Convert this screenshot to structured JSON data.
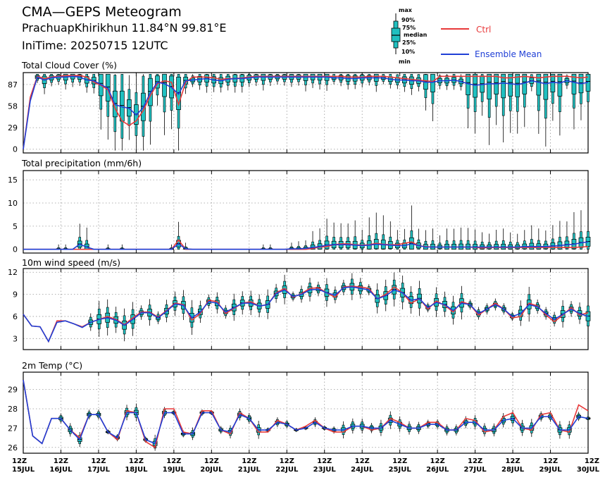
{
  "header": {
    "title": "CMA—GEPS Meteogram",
    "location": "PrachuapKhirikhun 11.84°N 99.81°E",
    "init_time": "IniTime: 20250715 12UTC"
  },
  "legend": {
    "box_labels": [
      "max",
      "90%",
      "75%",
      "median",
      "25%",
      "10%",
      "min"
    ],
    "series": [
      {
        "name": "Ctrl",
        "color": "#e8393a"
      },
      {
        "name": "Ensemble Mean",
        "color": "#1f3fd6"
      }
    ],
    "box_color": "#20c0c0"
  },
  "x_axis": {
    "hour_label": "12Z",
    "dates": [
      "15JUL",
      "16JUL",
      "17JUL",
      "18JUL",
      "19JUL",
      "20JUL",
      "21JUL",
      "22JUL",
      "23JUL",
      "24JUL",
      "25JUL",
      "26JUL",
      "27JUL",
      "28JUL",
      "29JUL",
      "30JUL"
    ]
  },
  "chart_data": [
    {
      "type": "boxplot+line",
      "title": "Total Cloud Cover (%)",
      "ylim": [
        -5,
        103
      ],
      "yticks": [
        0,
        29,
        58,
        87
      ],
      "grid": true,
      "x_step_hours": 6,
      "box_start_index": 2,
      "ctrl": [
        0,
        70,
        98,
        95,
        97,
        98,
        99,
        99,
        99,
        97,
        90,
        86,
        80,
        55,
        38,
        32,
        38,
        52,
        72,
        88,
        92,
        90,
        60,
        90,
        97,
        97,
        97,
        96,
        94,
        95,
        95,
        96,
        97,
        98,
        98,
        98,
        98,
        98,
        98,
        98,
        98,
        98,
        98,
        98,
        98,
        98,
        97,
        97,
        97,
        98,
        98,
        98,
        97,
        96,
        95,
        94,
        93,
        92,
        91,
        98,
        98,
        98,
        98,
        98,
        98,
        98,
        98,
        98,
        96,
        96,
        97,
        98,
        97,
        96,
        97,
        98,
        98,
        98,
        97,
        96,
        97
      ],
      "mean": [
        0,
        65,
        97,
        93,
        96,
        97,
        97,
        98,
        97,
        93,
        92,
        87,
        82,
        60,
        57,
        55,
        46,
        56,
        76,
        90,
        88,
        83,
        74,
        92,
        93,
        94,
        95,
        93,
        92,
        94,
        95,
        95,
        96,
        97,
        97,
        97,
        97,
        97,
        97,
        97,
        97,
        97,
        97,
        97,
        96,
        96,
        95,
        95,
        96,
        96,
        96,
        96,
        94,
        93,
        93,
        92,
        92,
        90,
        90,
        92,
        92,
        93,
        91,
        88,
        86,
        87,
        88,
        88,
        89,
        88,
        87,
        89,
        92,
        90,
        88,
        90,
        89,
        92,
        90,
        88,
        90
      ]
    },
    {
      "type": "boxplot+line",
      "title": "Total precipitation (mm/6h)",
      "ylim": [
        -0.8,
        17
      ],
      "yticks": [
        0,
        5,
        10,
        15
      ],
      "grid": true,
      "x_step_hours": 6,
      "box_start_index": 2,
      "ctrl": [
        0,
        0,
        0,
        0,
        0,
        0,
        0,
        0,
        0,
        0,
        0,
        0,
        0,
        0,
        0,
        0,
        0,
        0,
        0,
        0,
        0,
        0,
        2,
        0,
        0,
        0,
        0,
        0,
        0,
        0,
        0,
        0,
        0,
        0,
        0,
        0,
        0,
        0,
        0,
        0,
        0,
        0.2,
        0.5,
        0.6,
        1,
        1.2,
        1.2,
        1,
        0.9,
        1,
        1.3,
        1.1,
        1,
        1,
        1.3,
        1.6,
        0.8,
        0.6,
        0.5,
        0.5,
        0.5,
        0.5,
        0.5,
        0.5,
        0.4,
        0.3,
        0.4,
        0.4,
        0.4,
        0.4,
        0.4,
        0.4,
        0.4,
        0.4,
        0.4,
        0.4,
        0.4,
        0.4,
        0.4,
        0.5,
        0.6
      ],
      "mean": [
        0,
        0,
        0,
        0,
        0,
        0,
        0,
        0,
        1.1,
        0.5,
        0,
        0,
        0,
        0,
        0,
        0,
        0,
        0,
        0,
        0,
        0,
        0,
        1.2,
        0.1,
        0,
        0,
        0,
        0,
        0,
        0,
        0,
        0,
        0,
        0,
        0,
        0,
        0,
        0,
        0.1,
        0.1,
        0.2,
        0.4,
        0.6,
        0.9,
        1,
        1,
        1,
        0.9,
        0.8,
        0.9,
        1.1,
        1,
        0.9,
        0.8,
        0.8,
        1.2,
        0.8,
        0.5,
        0.5,
        0.5,
        0.5,
        0.5,
        0.5,
        0.5,
        0.5,
        0.5,
        0.5,
        0.5,
        0.5,
        0.5,
        0.5,
        0.6,
        0.6,
        0.6,
        0.6,
        0.7,
        0.8,
        1,
        1.1,
        1.4,
        1.6
      ]
    },
    {
      "type": "boxplot+line",
      "title": "10m wind speed (m/s)",
      "ylim": [
        1.5,
        12.5
      ],
      "yticks": [
        3,
        6,
        9,
        12
      ],
      "grid": true,
      "x_step_hours": 6,
      "box_start_index": 8,
      "ctrl": [
        6.3,
        4.7,
        4.6,
        2.6,
        5.4,
        5.4,
        5,
        4.6,
        5.2,
        5.6,
        6,
        5.6,
        4.9,
        5.8,
        6.6,
        6.6,
        5.9,
        6.8,
        7.8,
        7.6,
        5.5,
        6.4,
        8.2,
        8,
        6.4,
        7.1,
        7.8,
        8,
        7.4,
        7.6,
        9.2,
        9.8,
        8.6,
        9.1,
        9.8,
        9.9,
        9.2,
        8.6,
        10,
        10.1,
        10,
        9.8,
        8.4,
        9,
        10,
        9.2,
        7.8,
        8.4,
        7,
        8.1,
        7.5,
        6.6,
        8,
        7.6,
        6.2,
        7,
        7.8,
        7,
        5.8,
        6,
        7.8,
        7.4,
        6.2,
        5.3,
        6.2,
        7.2,
        6.2,
        6.5
      ],
      "mean": [
        6.3,
        4.7,
        4.6,
        2.6,
        5.2,
        5.4,
        5,
        4.5,
        5.2,
        5.6,
        5.8,
        5.5,
        4.8,
        5.6,
        6.5,
        6.5,
        5.8,
        6.7,
        7.7,
        7.5,
        5.8,
        6.6,
        8,
        7.8,
        6.6,
        7.2,
        7.8,
        7.8,
        7.4,
        7.6,
        9.1,
        9.6,
        8.7,
        9,
        9.6,
        9.7,
        9.2,
        8.9,
        9.9,
        10,
        9.8,
        9.6,
        8.4,
        8.8,
        9.6,
        9.2,
        8.2,
        8.4,
        7.2,
        7.9,
        7.6,
        6.8,
        7.8,
        7.6,
        6.4,
        7,
        7.6,
        7,
        6,
        6.4,
        7.6,
        7.3,
        6.4,
        5.6,
        6.3,
        7,
        6.4,
        6
      ]
    },
    {
      "type": "boxplot+line",
      "title": "2m Temp (°C)",
      "ylim": [
        25.7,
        29.9
      ],
      "yticks": [
        26,
        27,
        28,
        29
      ],
      "grid": true,
      "x_step_hours": 6,
      "box_start_index": 4,
      "ctrl": [
        29.5,
        26.6,
        26.2,
        27.5,
        27.5,
        26.9,
        26.5,
        27.7,
        27.7,
        26.8,
        26.4,
        27.9,
        27.8,
        26.3,
        26,
        28,
        28,
        26.8,
        26.7,
        27.9,
        27.9,
        26.9,
        26.7,
        27.8,
        27.5,
        26.8,
        26.8,
        27.4,
        27.2,
        26.9,
        27.1,
        27.4,
        27,
        26.8,
        26.8,
        27.1,
        27.1,
        26.9,
        27,
        27.5,
        27.3,
        27,
        27,
        27.3,
        27.3,
        26.9,
        26.9,
        27.5,
        27.4,
        26.8,
        26.9,
        27.6,
        27.8,
        27,
        26.9,
        27.7,
        27.8,
        26.9,
        26.8,
        28.2,
        27.9
      ],
      "mean": [
        29.5,
        26.6,
        26.2,
        27.5,
        27.5,
        26.9,
        26.4,
        27.7,
        27.7,
        26.8,
        26.5,
        27.8,
        27.8,
        26.4,
        26.2,
        27.8,
        27.8,
        26.7,
        26.7,
        27.8,
        27.8,
        26.9,
        26.8,
        27.7,
        27.5,
        26.9,
        26.9,
        27.3,
        27.2,
        26.9,
        27,
        27.3,
        27,
        26.9,
        26.9,
        27.1,
        27.1,
        27,
        27,
        27.4,
        27.2,
        27,
        27,
        27.2,
        27.2,
        26.9,
        26.9,
        27.3,
        27.3,
        26.9,
        26.9,
        27.4,
        27.5,
        27,
        27,
        27.6,
        27.6,
        26.9,
        26.9,
        27.6,
        27.5
      ]
    }
  ]
}
